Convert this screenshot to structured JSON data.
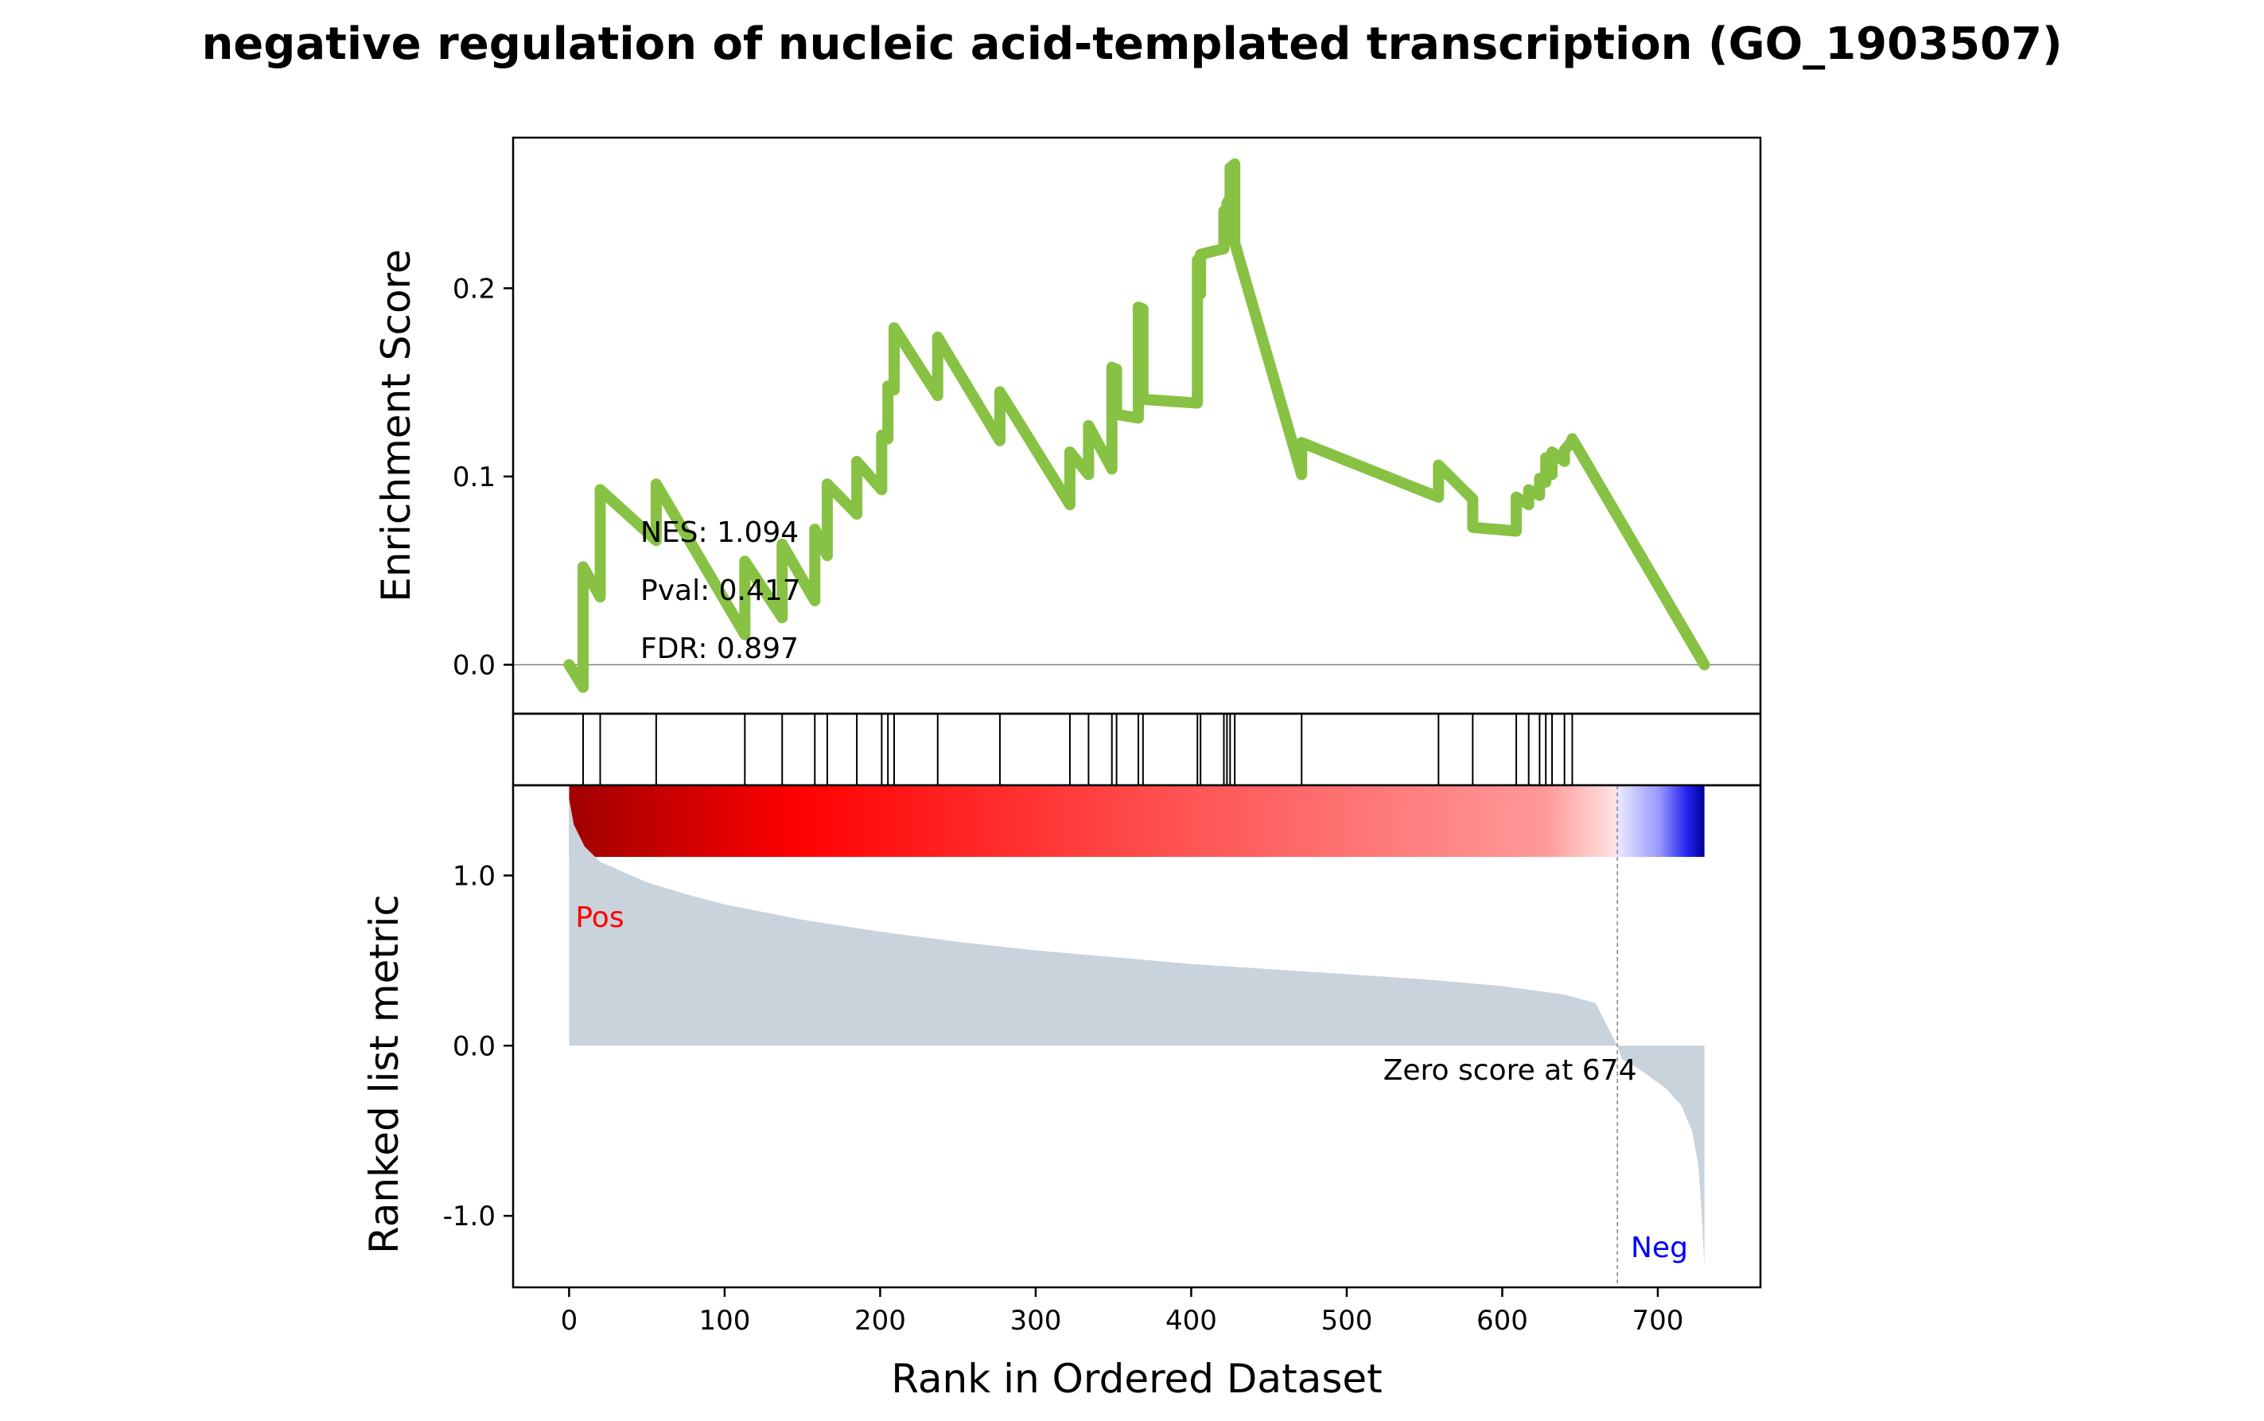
{
  "chart_data": {
    "type": "line",
    "title": "negative regulation of nucleic acid-templated transcription (GO_1903507)",
    "xlabel": "Rank in Ordered Dataset",
    "xlim": [
      -36,
      766
    ],
    "x_ticks": [
      "0",
      "100",
      "200",
      "300",
      "400",
      "500",
      "600",
      "700"
    ],
    "colors": {
      "es_line": "#88c244",
      "metric_fill": "#c9d3dc",
      "pos_label": "#ff0000",
      "neg_label": "#0000ff",
      "hit_lines": "#000000",
      "zero_line": "#808080"
    },
    "enrichment": {
      "ylabel": "Enrichment Score",
      "ylim": [
        -0.026,
        0.28
      ],
      "y_ticks": [
        "0.0",
        "0.1",
        "0.2"
      ],
      "stats": [
        "NES: 1.094",
        "Pval: 0.417",
        "FDR: 0.897"
      ],
      "x": [
        0,
        9,
        9,
        20,
        20,
        56,
        56,
        113,
        113,
        137,
        137,
        158,
        158,
        166,
        166,
        185,
        185,
        201,
        201,
        205,
        205,
        209,
        209,
        237,
        237,
        277,
        277,
        322,
        322,
        334,
        334,
        349,
        349,
        352,
        352,
        366,
        366,
        369,
        369,
        404,
        404,
        406,
        406,
        421,
        421,
        423,
        423,
        425,
        425,
        428,
        428,
        471,
        471,
        559,
        559,
        581,
        581,
        609,
        609,
        617,
        617,
        624,
        624,
        628,
        628,
        632,
        632,
        640,
        640,
        645,
        645,
        730
      ],
      "y": [
        0.0,
        -0.012,
        0.052,
        0.036,
        0.093,
        0.066,
        0.096,
        0.016,
        0.055,
        0.025,
        0.064,
        0.034,
        0.072,
        0.058,
        0.096,
        0.08,
        0.108,
        0.093,
        0.122,
        0.12,
        0.148,
        0.146,
        0.179,
        0.143,
        0.174,
        0.119,
        0.145,
        0.085,
        0.113,
        0.101,
        0.127,
        0.104,
        0.158,
        0.157,
        0.133,
        0.131,
        0.19,
        0.189,
        0.141,
        0.139,
        0.215,
        0.197,
        0.218,
        0.221,
        0.241,
        0.241,
        0.245,
        0.248,
        0.264,
        0.266,
        0.224,
        0.101,
        0.118,
        0.089,
        0.106,
        0.088,
        0.073,
        0.071,
        0.089,
        0.085,
        0.093,
        0.09,
        0.099,
        0.097,
        0.11,
        0.101,
        0.113,
        0.108,
        0.114,
        0.119,
        0.12,
        0.0
      ]
    },
    "hits": {
      "x": [
        9,
        20,
        56,
        113,
        137,
        158,
        166,
        185,
        201,
        205,
        209,
        237,
        277,
        322,
        334,
        349,
        352,
        366,
        369,
        404,
        406,
        421,
        423,
        425,
        428,
        471,
        559,
        581,
        609,
        617,
        624,
        628,
        632,
        640,
        645
      ]
    },
    "ranked_metric": {
      "ylabel": "Ranked list metric",
      "ylim": [
        -1.42,
        1.53
      ],
      "y_ticks": [
        "-1.0",
        "0.0",
        "1.0"
      ],
      "pos_label": "Pos",
      "neg_label": "Neg",
      "zero_label": "Zero score at 674",
      "zero_rank": 674,
      "x": [
        0,
        3,
        10,
        20,
        35,
        50,
        75,
        100,
        150,
        200,
        250,
        300,
        350,
        400,
        450,
        500,
        550,
        600,
        640,
        660,
        674,
        677,
        690,
        705,
        715,
        722,
        726,
        728,
        730
      ],
      "y": [
        1.45,
        1.3,
        1.17,
        1.08,
        1.02,
        0.96,
        0.89,
        0.83,
        0.74,
        0.67,
        0.61,
        0.56,
        0.52,
        0.48,
        0.45,
        0.42,
        0.39,
        0.35,
        0.3,
        0.25,
        0.0,
        -0.08,
        -0.15,
        -0.25,
        -0.35,
        -0.5,
        -0.7,
        -0.95,
        -1.3
      ]
    }
  }
}
